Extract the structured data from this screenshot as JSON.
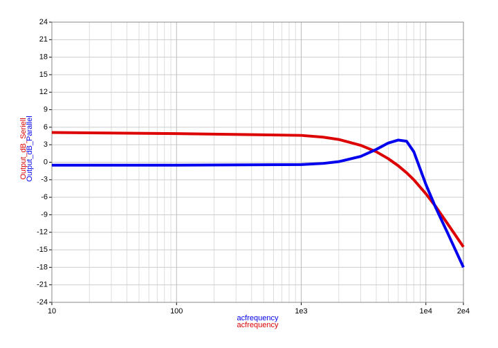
{
  "chart_data": {
    "type": "line",
    "log_x": true,
    "grid": true,
    "x": [
      10,
      100,
      1000,
      1500,
      2000,
      3000,
      4000,
      5000,
      6000,
      7000,
      8000,
      10000,
      12000,
      15000,
      20000
    ],
    "series": [
      {
        "name": "Output_dB_Seriell",
        "color": "#dd0000",
        "xlabel": "acfrequency",
        "values": [
          5.1,
          4.9,
          4.6,
          4.3,
          3.9,
          2.9,
          1.8,
          0.6,
          -0.6,
          -1.8,
          -3,
          -5.4,
          -7.6,
          -10.6,
          -14.5
        ]
      },
      {
        "name": "Output_dB_Parallel",
        "color": "#0000ee",
        "xlabel": "acfrequency",
        "values": [
          -0.5,
          -0.5,
          -0.4,
          -0.2,
          0.1,
          1.0,
          2.2,
          3.3,
          3.8,
          3.6,
          1.8,
          -3.8,
          -7.8,
          -12.2,
          -18
        ]
      }
    ],
    "xlim": [
      10,
      20000
    ],
    "xticks": [
      10,
      100,
      {
        "value": 1000,
        "label": "1e3"
      },
      {
        "value": 10000,
        "label": "1e4"
      },
      {
        "value": 20000,
        "label": "2e4"
      }
    ],
    "ylim": [
      -24,
      24
    ],
    "yticks": [
      -24,
      -21,
      -18,
      -15,
      -12,
      -9,
      -6,
      -3,
      0,
      3,
      6,
      9,
      12,
      15,
      18,
      21,
      24
    ]
  }
}
